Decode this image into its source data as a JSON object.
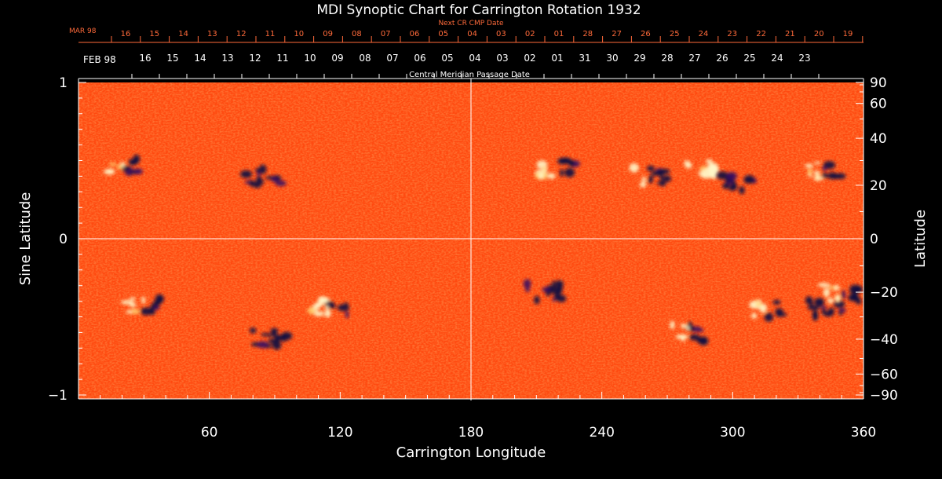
{
  "chart_data": {
    "type": "heatmap",
    "title": "MDI Synoptic Chart for Carrington Rotation 1932",
    "xlabel": "Carrington Longitude",
    "ylabel_left": "Sine Latitude",
    "ylabel_right": "Latitude",
    "xlim": [
      0,
      360
    ],
    "ylim": [
      -1,
      1
    ],
    "x_ticks": [
      60,
      120,
      180,
      240,
      300,
      360
    ],
    "y_ticks_left": [
      "1",
      "0",
      "−1"
    ],
    "y_ticks_right": [
      90,
      60,
      40,
      20,
      0,
      -20,
      -40,
      -60,
      -90
    ],
    "top_axis_label": "Central Meridian Passage Date",
    "top_axis_month": "FEB 98",
    "top_axis_dates": [
      "16",
      "15",
      "14",
      "13",
      "12",
      "11",
      "10",
      "09",
      "08",
      "07",
      "06",
      "05",
      "04",
      "03",
      "02",
      "01",
      "31",
      "30",
      "29",
      "28",
      "27",
      "26",
      "25",
      "24",
      "23"
    ],
    "next_cr_label": "Next CR CMP Date",
    "next_cr_month": "MAR 98",
    "next_cr_dates": [
      "16",
      "15",
      "14",
      "13",
      "12",
      "11",
      "10",
      "09",
      "08",
      "07",
      "06",
      "05",
      "04",
      "03",
      "02",
      "01",
      "28",
      "27",
      "26",
      "25",
      "24",
      "23",
      "22",
      "21",
      "20",
      "19"
    ],
    "colors": {
      "background": "#ff4a10",
      "positive": "#fff6c8",
      "negative": "#0a0a40",
      "text": "#ffffff",
      "next_cr_text": "#ff6a3a"
    },
    "active_regions": [
      {
        "lon": 21,
        "sinlat": 0.46,
        "polarity": "mixed"
      },
      {
        "lon": 85,
        "sinlat": 0.4,
        "polarity": "negative"
      },
      {
        "lon": 30,
        "sinlat": -0.42,
        "polarity": "mixed"
      },
      {
        "lon": 115,
        "sinlat": -0.43,
        "polarity": "mixed"
      },
      {
        "lon": 88,
        "sinlat": -0.64,
        "polarity": "negative"
      },
      {
        "lon": 220,
        "sinlat": 0.45,
        "polarity": "mixed"
      },
      {
        "lon": 262,
        "sinlat": 0.4,
        "polarity": "mixed"
      },
      {
        "lon": 285,
        "sinlat": 0.45,
        "polarity": "positive"
      },
      {
        "lon": 302,
        "sinlat": 0.35,
        "polarity": "negative"
      },
      {
        "lon": 342,
        "sinlat": 0.44,
        "polarity": "mixed"
      },
      {
        "lon": 214,
        "sinlat": -0.34,
        "polarity": "negative"
      },
      {
        "lon": 280,
        "sinlat": -0.6,
        "polarity": "mixed"
      },
      {
        "lon": 342,
        "sinlat": -0.45,
        "polarity": "negative"
      },
      {
        "lon": 350,
        "sinlat": -0.35,
        "polarity": "mixed"
      },
      {
        "lon": 315,
        "sinlat": -0.45,
        "polarity": "mixed"
      }
    ]
  }
}
